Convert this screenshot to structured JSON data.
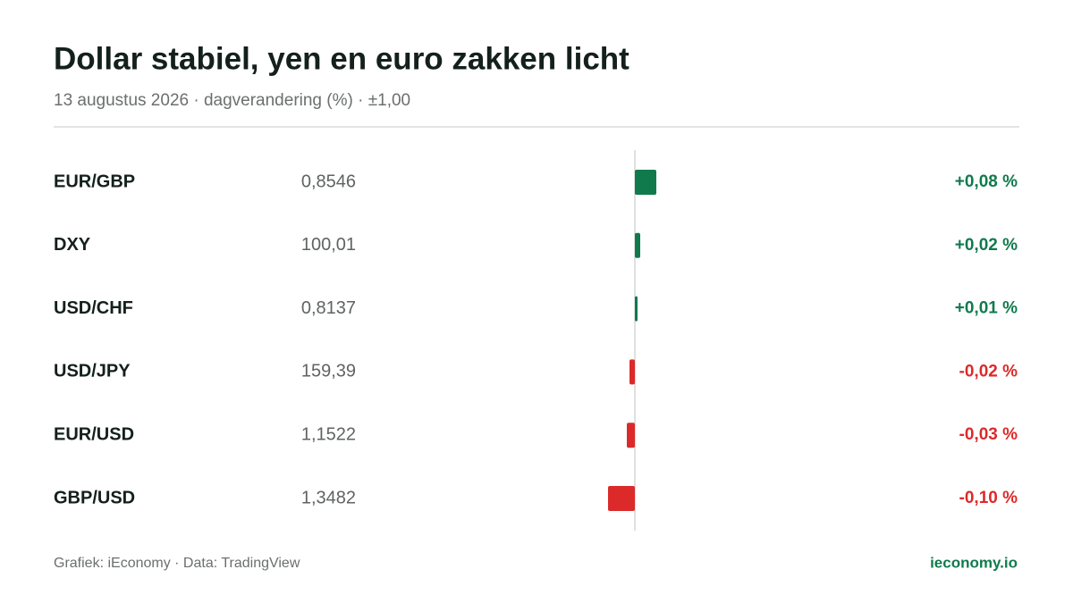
{
  "chart_data": {
    "type": "diverging-bar",
    "title": "Dollar stabiel, yen en euro zakken licht",
    "subtitle": "13 augustus 2026 · dagverandering (%) · ±1,00",
    "categories": [
      "EUR/GBP",
      "DXY",
      "USD/CHF",
      "USD/JPY",
      "EUR/USD",
      "GBP/USD"
    ],
    "rates": [
      "0,8546",
      "100,01",
      "0,8137",
      "159,39",
      "1,1522",
      "1,3482"
    ],
    "values": [
      0.08,
      0.02,
      0.01,
      -0.02,
      -0.03,
      -0.1
    ],
    "value_labels": [
      "+0,08 %",
      "+0,02 %",
      "+0,01 %",
      "-0,02 %",
      "-0,03 %",
      "-0,10 %"
    ],
    "xlim": [
      -1,
      1
    ],
    "positive_color": "#107a4d",
    "negative_color": "#dc2a2a",
    "source": "Grafiek: iEconomy · Data: TradingView",
    "brand": "ieconomy.io"
  }
}
